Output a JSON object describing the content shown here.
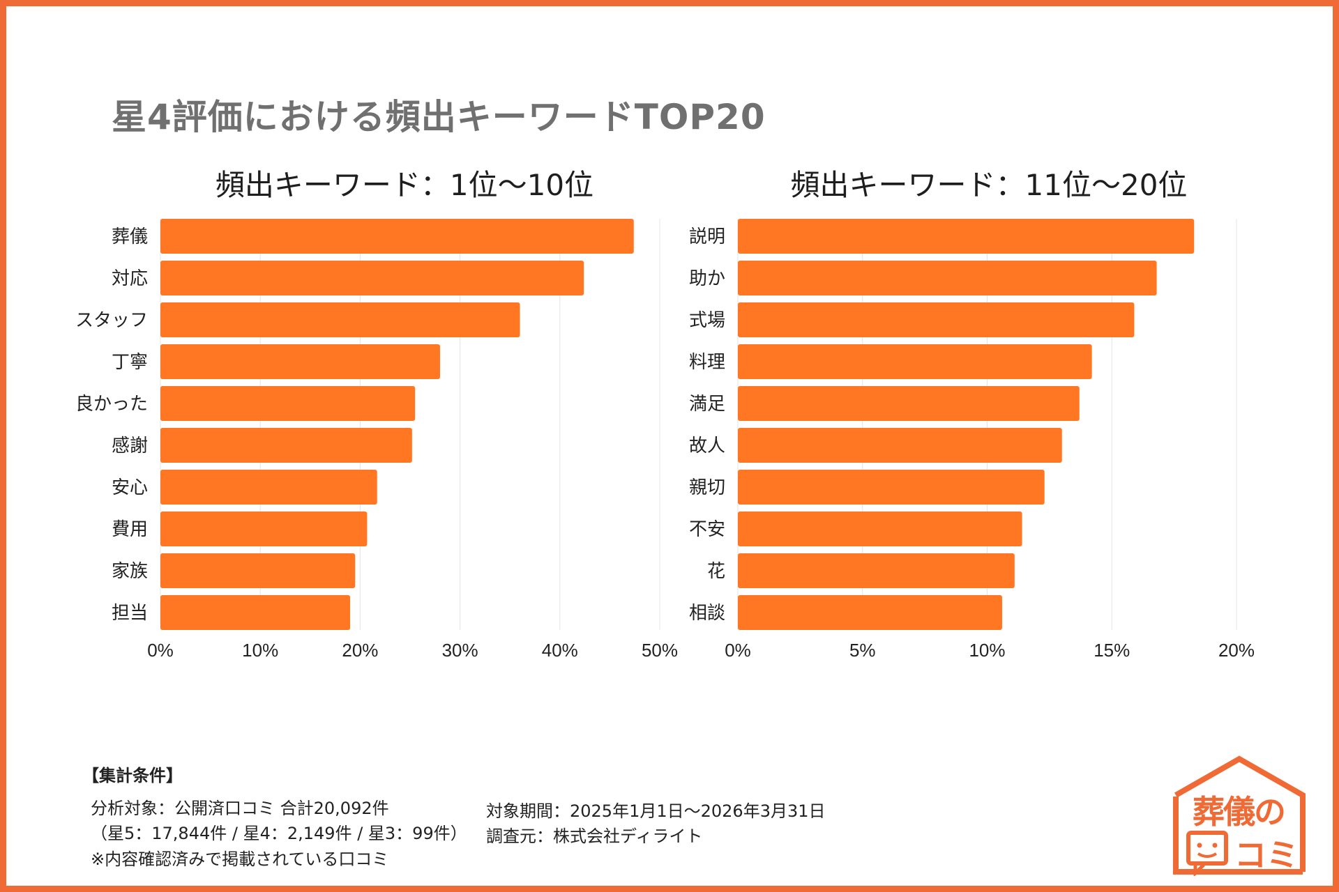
{
  "title": "星4評価における頻出キーワードTOP20",
  "colors": {
    "bar": "#ff7722",
    "frame": "#f06a35",
    "grid": "#e4e4e4"
  },
  "chart_data": [
    {
      "type": "bar",
      "orientation": "horizontal",
      "title": "頻出キーワード：1位〜10位",
      "categories": [
        "葬儀",
        "対応",
        "スタッフ",
        "丁寧",
        "良かった",
        "感謝",
        "安心",
        "費用",
        "家族",
        "担当"
      ],
      "values": [
        47.4,
        42.4,
        36.0,
        28.0,
        25.5,
        25.2,
        21.7,
        20.7,
        19.5,
        19.0
      ],
      "xlim": [
        0,
        50
      ],
      "x_ticks": [
        "0%",
        "10%",
        "20%",
        "30%",
        "40%",
        "50%"
      ],
      "grid": true
    },
    {
      "type": "bar",
      "orientation": "horizontal",
      "title": "頻出キーワード：11位〜20位",
      "categories": [
        "説明",
        "助か",
        "式場",
        "料理",
        "満足",
        "故人",
        "親切",
        "不安",
        "花",
        "相談"
      ],
      "values": [
        18.3,
        16.8,
        15.9,
        14.2,
        13.7,
        13.0,
        12.3,
        11.4,
        11.1,
        10.6
      ],
      "xlim": [
        0,
        20
      ],
      "x_ticks": [
        "0%",
        "5%",
        "10%",
        "15%",
        "20%"
      ],
      "grid": true
    }
  ],
  "conditions": {
    "heading": "【集計条件】",
    "target": "分析対象：公開済口コミ 合計20,092件",
    "breakdown": "（星5：17,844件 / 星4：2,149件 / 星3：99件）",
    "note": "※内容確認済みで掲載されている口コミ",
    "period": "対象期間：2025年1月1日〜2026年3月31日",
    "source": "調査元：株式会社ディライト"
  },
  "logo": {
    "line1": "葬儀の",
    "line2": "コミ"
  }
}
